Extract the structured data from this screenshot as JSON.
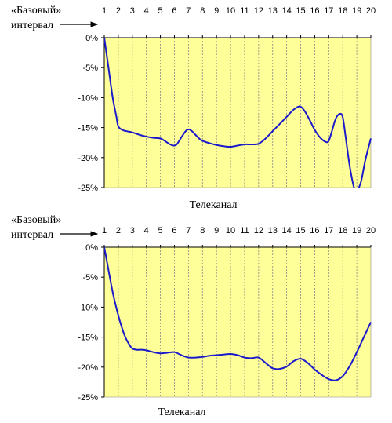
{
  "chart_data": [
    {
      "type": "line",
      "base_label_line1": "«Базовый»",
      "base_label_line2": "интервал",
      "xlabel": "Телеканал",
      "categories": [
        "1",
        "2",
        "3",
        "4",
        "5",
        "6",
        "7",
        "8",
        "9",
        "10",
        "11",
        "12",
        "13",
        "14",
        "15",
        "16",
        "17",
        "18",
        "19",
        "20"
      ],
      "y_ticks": [
        "0%",
        "-5%",
        "-10%",
        "-15%",
        "-20%",
        "-25%"
      ],
      "ylim": [
        -25,
        0
      ],
      "grid": "vertical",
      "plot_bg": "#ffff99",
      "line_color": "#1a1acc",
      "x": [
        1,
        1.3,
        1.6,
        1.85,
        2,
        2.3,
        2.6,
        3,
        3.5,
        4,
        4.5,
        5,
        5.3,
        5.7,
        6,
        6.2,
        6.5,
        6.8,
        7,
        7.2,
        7.5,
        7.8,
        8,
        8.5,
        9,
        9.5,
        10,
        10.5,
        11,
        11.5,
        12,
        12.5,
        13,
        13.5,
        14,
        14.4,
        14.75,
        15,
        15.3,
        15.7,
        16,
        16.4,
        16.8,
        17,
        17.2,
        17.5,
        17.8,
        18,
        18.2,
        18.5,
        18.8,
        19,
        19.3,
        19.6,
        20
      ],
      "values": [
        0,
        -5,
        -10,
        -13,
        -14.8,
        -15.4,
        -15.6,
        -15.8,
        -16.2,
        -16.5,
        -16.7,
        -16.8,
        -17.2,
        -17.8,
        -18,
        -17.7,
        -16.6,
        -15.6,
        -15.3,
        -15.5,
        -16.2,
        -16.9,
        -17.2,
        -17.6,
        -17.9,
        -18.1,
        -18.2,
        -18,
        -17.8,
        -17.8,
        -17.7,
        -16.8,
        -15.6,
        -14.4,
        -13.2,
        -12.2,
        -11.6,
        -11.5,
        -12.3,
        -14,
        -15.4,
        -16.7,
        -17.4,
        -17.2,
        -15.8,
        -13.5,
        -12.7,
        -13.3,
        -16.5,
        -21.5,
        -25,
        -25.5,
        -24,
        -20.5,
        -16.8
      ]
    },
    {
      "type": "line",
      "base_label_line1": "«Базовый»",
      "base_label_line2": "интервал",
      "xlabel": "Телеканал",
      "categories": [
        "1",
        "2",
        "3",
        "4",
        "5",
        "6",
        "7",
        "8",
        "9",
        "10",
        "11",
        "12",
        "13",
        "14",
        "15",
        "16",
        "17",
        "18",
        "19",
        "20"
      ],
      "y_ticks": [
        "0%",
        "-5%",
        "-10%",
        "-15%",
        "-20%",
        "-25%"
      ],
      "ylim": [
        -25,
        0
      ],
      "grid": "vertical",
      "plot_bg": "#ffff99",
      "line_color": "#1a1acc",
      "x": [
        1,
        1.3,
        1.6,
        1.9,
        2.2,
        2.5,
        2.8,
        3,
        3.3,
        3.7,
        4,
        4.5,
        5,
        5.5,
        6,
        6.5,
        7,
        7.5,
        8,
        8.5,
        9,
        9.5,
        10,
        10.5,
        11,
        11.5,
        12,
        12.5,
        13,
        13.5,
        14,
        14.5,
        15,
        15.5,
        16,
        16.5,
        17,
        17.5,
        18,
        18.5,
        19,
        19.5,
        20
      ],
      "values": [
        0,
        -3.8,
        -7.5,
        -10.5,
        -13,
        -15,
        -16.3,
        -16.9,
        -17.1,
        -17.1,
        -17.2,
        -17.5,
        -17.7,
        -17.6,
        -17.5,
        -18,
        -18.4,
        -18.4,
        -18.3,
        -18.1,
        -18,
        -17.9,
        -17.8,
        -18,
        -18.4,
        -18.5,
        -18.4,
        -19.3,
        -20.2,
        -20.3,
        -19.9,
        -19,
        -18.6,
        -19.3,
        -20.4,
        -21.3,
        -22,
        -22.2,
        -21.5,
        -19.8,
        -17.5,
        -15,
        -12.5
      ]
    }
  ]
}
